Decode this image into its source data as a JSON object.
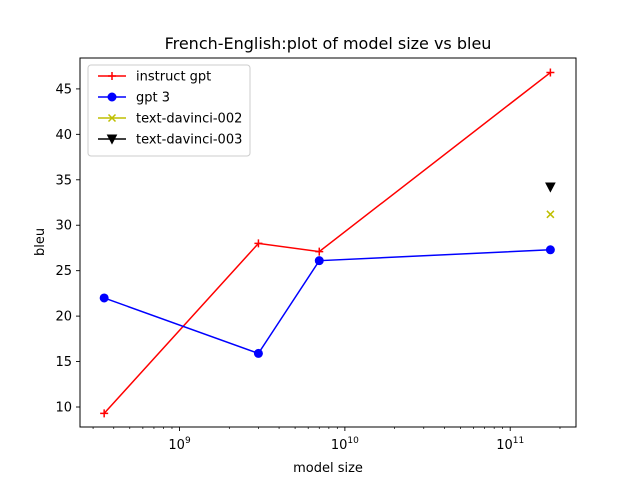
{
  "chart_data": {
    "type": "line",
    "title": "French-English:plot of model size vs bleu",
    "xlabel": "model size",
    "ylabel": "bleu",
    "xscale": "log",
    "xlim": [
      250000000,
      250000000000
    ],
    "ylim": [
      7.8,
      48.4
    ],
    "x_ticks": [
      {
        "value": 1000000000,
        "base": "10",
        "exp": "9"
      },
      {
        "value": 10000000000,
        "base": "10",
        "exp": "10"
      },
      {
        "value": 100000000000,
        "base": "10",
        "exp": "11"
      }
    ],
    "y_ticks": [
      10,
      15,
      20,
      25,
      30,
      35,
      40,
      45
    ],
    "grid": false,
    "legend_position": "top-left",
    "series": [
      {
        "name": "instruct gpt",
        "color": "#ff0000",
        "marker": "plus",
        "line": true,
        "points": [
          {
            "x": 350000000,
            "y": 9.3
          },
          {
            "x": 3000000000,
            "y": 28.0
          },
          {
            "x": 7000000000,
            "y": 27.1
          },
          {
            "x": 175000000000,
            "y": 46.8
          }
        ]
      },
      {
        "name": "gpt 3",
        "color": "#0000ff",
        "marker": "circle",
        "line": true,
        "points": [
          {
            "x": 350000000,
            "y": 22.0
          },
          {
            "x": 3000000000,
            "y": 15.9
          },
          {
            "x": 7000000000,
            "y": 26.1
          },
          {
            "x": 175000000000,
            "y": 27.3
          }
        ]
      },
      {
        "name": "text-davinci-002",
        "color": "#bfbf00",
        "marker": "x",
        "line": true,
        "points": [
          {
            "x": 175000000000,
            "y": 31.2
          }
        ]
      },
      {
        "name": "text-davinci-003",
        "color": "#000000",
        "marker": "triangle-down",
        "line": true,
        "points": [
          {
            "x": 175000000000,
            "y": 34.2
          }
        ]
      }
    ]
  }
}
